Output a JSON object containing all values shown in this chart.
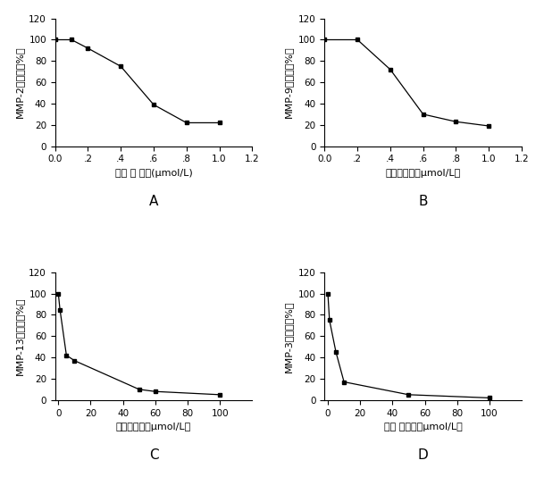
{
  "subplots": [
    {
      "label": "A",
      "ylabel": "MMP-2的活力（%）",
      "xlabel": "单体 的 浓度(μmol/L)",
      "x": [
        0.0,
        0.1,
        0.2,
        0.4,
        0.6,
        0.8,
        1.0
      ],
      "y": [
        100,
        100,
        92,
        75,
        39,
        22,
        22
      ],
      "xlim": [
        0.0,
        1.2
      ],
      "ylim": [
        0,
        120
      ],
      "xticks": [
        0.0,
        0.2,
        0.4,
        0.6,
        0.8,
        1.0,
        1.2
      ],
      "xticklabels": [
        "0.0",
        ".2",
        ".4",
        ".6",
        ".8",
        "1.0",
        "1.2"
      ],
      "yticks": [
        0,
        20,
        40,
        60,
        80,
        100,
        120
      ]
    },
    {
      "label": "B",
      "ylabel": "MMP-9的活力（%）",
      "xlabel": "单体的浓度（μmol/L）",
      "x": [
        0.0,
        0.2,
        0.4,
        0.6,
        0.8,
        1.0
      ],
      "y": [
        100,
        100,
        72,
        30,
        23,
        19
      ],
      "xlim": [
        0.0,
        1.2
      ],
      "ylim": [
        0,
        120
      ],
      "xticks": [
        0.0,
        0.2,
        0.4,
        0.6,
        0.8,
        1.0,
        1.2
      ],
      "xticklabels": [
        "0.0",
        ".2",
        ".4",
        ".6",
        ".8",
        "1.0",
        "1.2"
      ],
      "yticks": [
        0,
        20,
        40,
        60,
        80,
        100,
        120
      ]
    },
    {
      "label": "C",
      "ylabel": "MMP-13的活力（%）",
      "xlabel": "单体的浓度（μmol/L）",
      "x": [
        0.0,
        1.0,
        5.0,
        10.0,
        50.0,
        60.0,
        100.0
      ],
      "y": [
        100,
        85,
        42,
        37,
        10,
        8,
        5
      ],
      "xlim": [
        -2,
        120
      ],
      "ylim": [
        0,
        120
      ],
      "xticks": [
        0,
        20,
        40,
        60,
        80,
        100
      ],
      "xticklabels": [
        "0",
        "20",
        "40",
        "60",
        "80",
        "100"
      ],
      "yticks": [
        0,
        20,
        40,
        60,
        80,
        100,
        120
      ]
    },
    {
      "label": "D",
      "ylabel": "MMP-3的活力（%）",
      "xlabel": "单体 的浓度（μmol/L）",
      "x": [
        0.0,
        1.0,
        5.0,
        10.0,
        50.0,
        100.0
      ],
      "y": [
        100,
        75,
        45,
        17,
        5,
        2
      ],
      "xlim": [
        -2,
        120
      ],
      "ylim": [
        0,
        120
      ],
      "xticks": [
        0,
        20,
        40,
        60,
        80,
        100
      ],
      "xticklabels": [
        "0",
        "20",
        "40",
        "60",
        "80",
        "100"
      ],
      "yticks": [
        0,
        20,
        40,
        60,
        80,
        100,
        120
      ]
    }
  ],
  "line_color": "#000000",
  "marker": "s",
  "marker_size": 3.5,
  "line_width": 0.9,
  "font_size_label": 8,
  "font_size_tick": 7.5,
  "font_size_caption": 11
}
